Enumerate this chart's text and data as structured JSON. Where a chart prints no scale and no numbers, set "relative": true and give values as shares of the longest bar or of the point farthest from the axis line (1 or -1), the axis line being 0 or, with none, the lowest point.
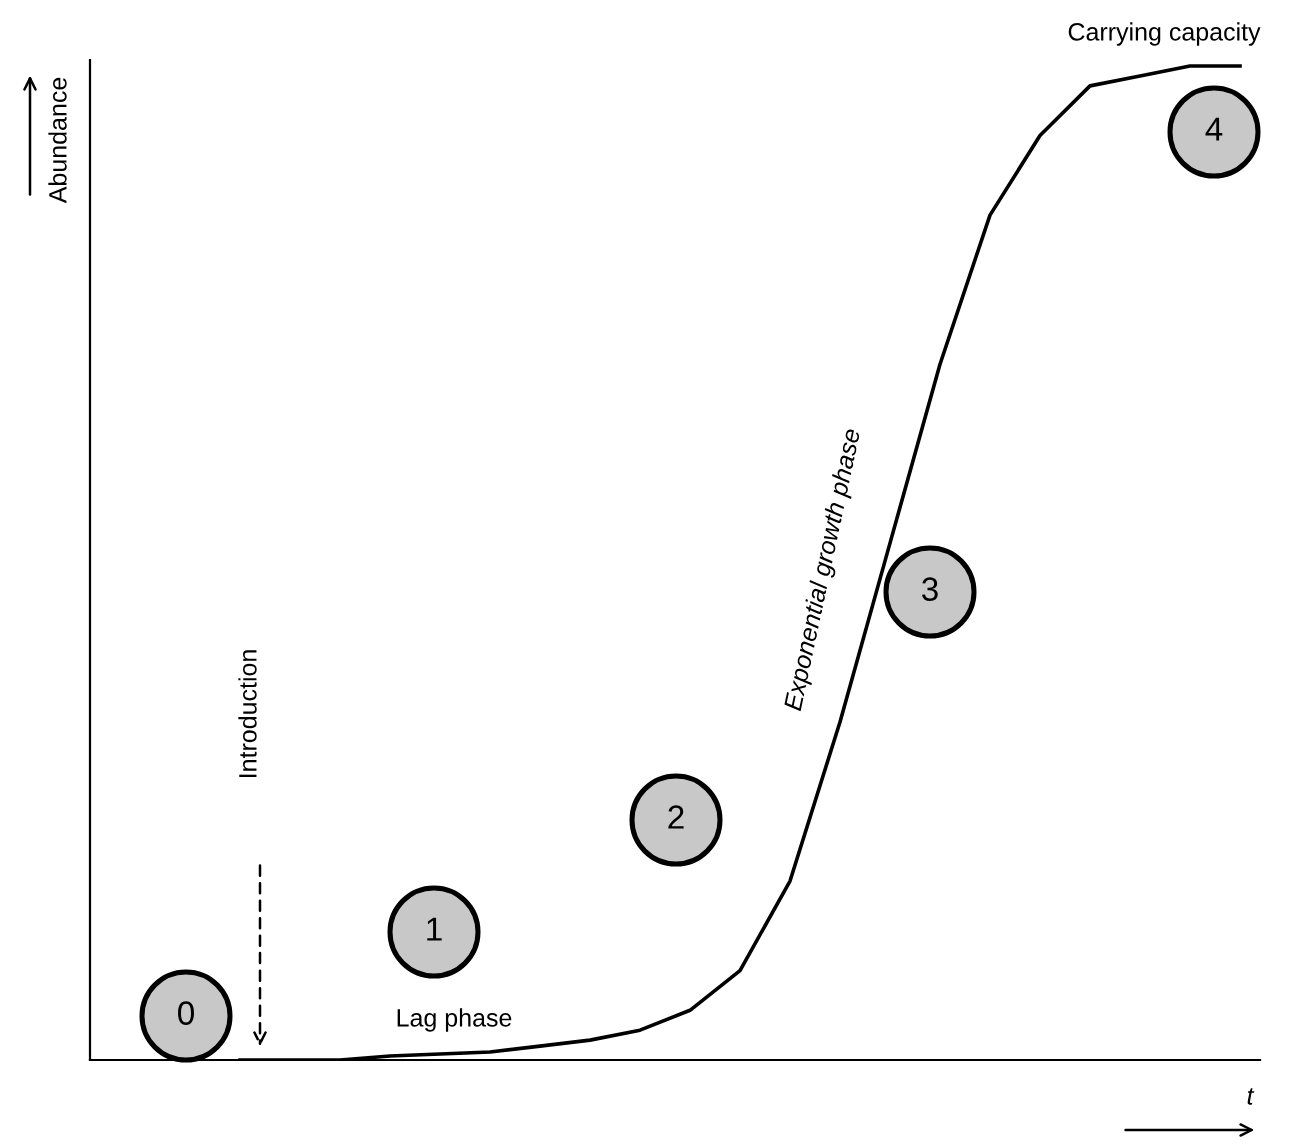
{
  "chart_data": {
    "type": "line",
    "relative": true,
    "xlabel": "t",
    "ylabel": "Abundance",
    "color": "#000000",
    "categories": [
      null,
      null,
      null,
      null,
      null,
      null,
      null,
      null,
      null,
      null,
      null,
      null,
      null,
      null,
      null,
      null,
      null,
      null,
      null,
      null,
      null,
      null,
      null,
      null
    ],
    "values": [
      null,
      null,
      null,
      0,
      0,
      0,
      0.004,
      0.006,
      0.008,
      0.014,
      0.02,
      0.03,
      0.05,
      0.09,
      0.18,
      0.34,
      0.52,
      0.7,
      0.85,
      0.93,
      0.98,
      0.99,
      1,
      1
    ],
    "annotations": [
      "0",
      "1",
      "2",
      "3",
      "4",
      "Introduction",
      "Lag phase",
      "Exponential growth phase",
      "Carrying capacity"
    ],
    "grid": false
  }
}
